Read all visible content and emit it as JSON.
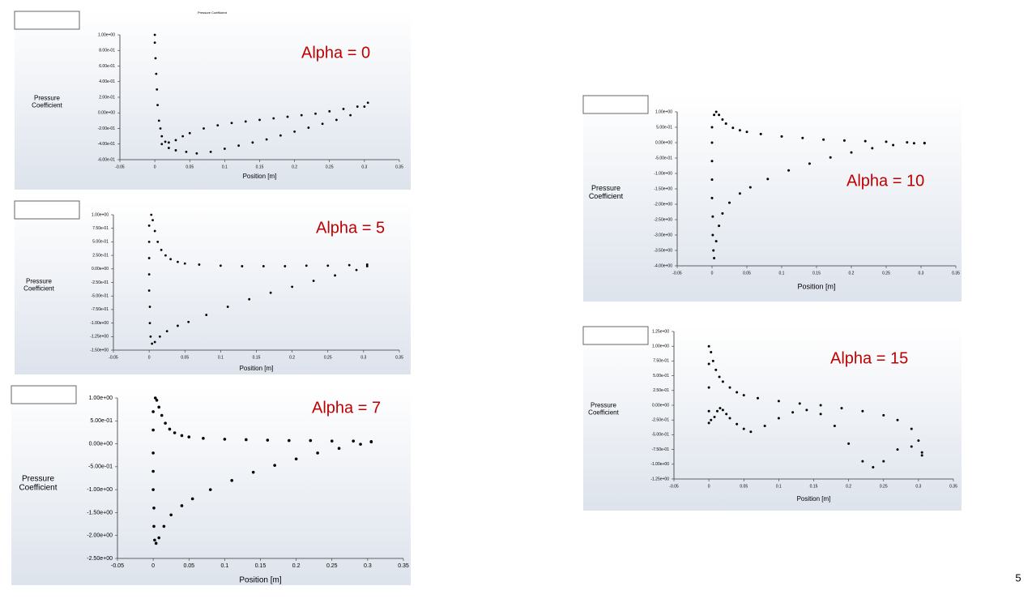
{
  "chart_data": [
    {
      "type": "scatter",
      "title": "Pressure Coefficient",
      "annotation": "Alpha = 0",
      "xlabel": "Position [m]",
      "ylabel": "Pressure\nCoefficient",
      "color": "#000000",
      "xlim": [
        -0.05,
        0.35
      ],
      "xticks": [
        -0.05,
        0,
        0.05,
        0.1,
        0.15,
        0.2,
        0.25,
        0.3,
        0.35
      ],
      "ylim": [
        -0.6,
        1
      ],
      "yticks": [
        {
          "value": -0.6,
          "label": "-6.00e-01"
        },
        {
          "value": -0.4,
          "label": "-4.00e-01"
        },
        {
          "value": -0.2,
          "label": "-2.00e-01"
        },
        {
          "value": 0,
          "label": "0.00e+00"
        },
        {
          "value": 0.2,
          "label": "2.00e-01"
        },
        {
          "value": 0.4,
          "label": "4.00e-01"
        },
        {
          "value": 0.6,
          "label": "6.00e-01"
        },
        {
          "value": 0.8,
          "label": "8.00e-01"
        },
        {
          "value": 1,
          "label": "1.00e+00"
        }
      ],
      "x": [
        0,
        0,
        0.001,
        0.002,
        0.003,
        0.004,
        0.006,
        0.008,
        0.01,
        0.015,
        0.02,
        0.03,
        0.04,
        0.05,
        0.07,
        0.09,
        0.11,
        0.13,
        0.15,
        0.17,
        0.19,
        0.21,
        0.23,
        0.25,
        0.27,
        0.29,
        0.305,
        0.01,
        0.02,
        0.03,
        0.045,
        0.06,
        0.08,
        0.1,
        0.12,
        0.14,
        0.16,
        0.18,
        0.2,
        0.22,
        0.24,
        0.26,
        0.28,
        0.3
      ],
      "values": [
        1,
        0.9,
        0.7,
        0.5,
        0.3,
        0.1,
        -0.1,
        -0.2,
        -0.3,
        -0.37,
        -0.38,
        -0.35,
        -0.3,
        -0.26,
        -0.2,
        -0.16,
        -0.13,
        -0.11,
        -0.09,
        -0.07,
        -0.05,
        -0.03,
        -0.01,
        0.02,
        0.05,
        0.08,
        0.13,
        -0.4,
        -0.45,
        -0.48,
        -0.5,
        -0.52,
        -0.5,
        -0.46,
        -0.42,
        -0.38,
        -0.34,
        -0.29,
        -0.24,
        -0.19,
        -0.14,
        -0.09,
        -0.03,
        0.08
      ]
    },
    {
      "type": "scatter",
      "annotation": "Alpha = 5",
      "xlabel": "Position [m]",
      "ylabel": "Pressure\nCoefficient",
      "color": "#000000",
      "xlim": [
        -0.05,
        0.35
      ],
      "xticks": [
        -0.05,
        0,
        0.05,
        0.1,
        0.15,
        0.2,
        0.25,
        0.3,
        0.35
      ],
      "ylim": [
        -1.5,
        1
      ],
      "yticks": [
        {
          "value": -1.5,
          "label": "-1.50e+00"
        },
        {
          "value": -1.25,
          "label": "-1.25e+00"
        },
        {
          "value": -1,
          "label": "-1.00e+00"
        },
        {
          "value": -0.75,
          "label": "-7.50e-01"
        },
        {
          "value": -0.5,
          "label": "-5.00e-01"
        },
        {
          "value": -0.25,
          "label": "-2.50e-01"
        },
        {
          "value": 0,
          "label": "0.00e+00"
        },
        {
          "value": 0.25,
          "label": "2.50e-01"
        },
        {
          "value": 0.5,
          "label": "5.00e-01"
        },
        {
          "value": 0.75,
          "label": "7.50e-01"
        },
        {
          "value": 1,
          "label": "1.00e+00"
        }
      ],
      "x": [
        0.003,
        0.005,
        0.008,
        0.012,
        0.017,
        0.023,
        0.03,
        0.04,
        0.05,
        0.07,
        0.1,
        0.13,
        0.16,
        0.19,
        0.22,
        0.25,
        0.28,
        0.305,
        0,
        0,
        0,
        0,
        0,
        0.001,
        0.001,
        0.002,
        0.004,
        0.008,
        0.015,
        0.025,
        0.04,
        0.055,
        0.08,
        0.11,
        0.14,
        0.17,
        0.2,
        0.23,
        0.26,
        0.29,
        0.305
      ],
      "values": [
        1,
        0.9,
        0.7,
        0.5,
        0.35,
        0.25,
        0.18,
        0.13,
        0.1,
        0.08,
        0.06,
        0.05,
        0.05,
        0.05,
        0.06,
        0.06,
        0.07,
        0.08,
        0.8,
        0.5,
        0.2,
        -0.1,
        -0.4,
        -0.7,
        -1,
        -1.25,
        -1.38,
        -1.35,
        -1.25,
        -1.15,
        -1.05,
        -0.98,
        -0.85,
        -0.7,
        -0.56,
        -0.44,
        -0.33,
        -0.22,
        -0.12,
        -0.02,
        0.05
      ]
    },
    {
      "type": "scatter",
      "annotation": "Alpha = 7",
      "xlabel": "Position [m]",
      "ylabel": "Pressure\nCoefficient",
      "color": "#000000",
      "xlim": [
        -0.05,
        0.35
      ],
      "xticks": [
        -0.05,
        0,
        0.05,
        0.1,
        0.15,
        0.2,
        0.25,
        0.3,
        0.35
      ],
      "ylim": [
        -2.5,
        1
      ],
      "yticks": [
        {
          "value": -2.5,
          "label": "-2.50e+00"
        },
        {
          "value": -2,
          "label": "-2.00e+00"
        },
        {
          "value": -1.5,
          "label": "-1.50e+00"
        },
        {
          "value": -1,
          "label": "-1.00e+00"
        },
        {
          "value": -0.5,
          "label": "-5.00e-01"
        },
        {
          "value": 0,
          "label": "0.00e+00"
        },
        {
          "value": 0.5,
          "label": "5.00e-01"
        },
        {
          "value": 1,
          "label": "1.00e+00"
        }
      ],
      "x": [
        0.003,
        0.005,
        0.008,
        0.012,
        0.017,
        0.023,
        0.03,
        0.04,
        0.05,
        0.07,
        0.1,
        0.13,
        0.16,
        0.19,
        0.22,
        0.25,
        0.28,
        0.305,
        0,
        0,
        0,
        0,
        0,
        0.001,
        0.001,
        0.002,
        0.004,
        0.008,
        0.015,
        0.025,
        0.04,
        0.055,
        0.08,
        0.11,
        0.14,
        0.17,
        0.2,
        0.23,
        0.26,
        0.29,
        0.305
      ],
      "values": [
        1,
        0.95,
        0.8,
        0.62,
        0.45,
        0.32,
        0.24,
        0.18,
        0.15,
        0.12,
        0.1,
        0.09,
        0.08,
        0.07,
        0.07,
        0.06,
        0.06,
        0.05,
        0.7,
        0.3,
        -0.2,
        -0.6,
        -1,
        -1.4,
        -1.8,
        -2.1,
        -2.17,
        -2.05,
        -1.8,
        -1.55,
        -1.35,
        -1.2,
        -1,
        -0.8,
        -0.62,
        -0.47,
        -0.33,
        -0.2,
        -0.1,
        -0.01,
        0.04
      ]
    },
    {
      "type": "scatter",
      "annotation": "Alpha = 10",
      "xlabel": "Position [m]",
      "ylabel": "Pressure\nCoefficient",
      "color": "#000000",
      "xlim": [
        -0.05,
        0.35
      ],
      "xticks": [
        -0.05,
        0,
        0.05,
        0.1,
        0.15,
        0.2,
        0.25,
        0.3,
        0.35
      ],
      "ylim": [
        -4,
        1
      ],
      "yticks": [
        {
          "value": -4,
          "label": "-4.00e+00"
        },
        {
          "value": -3.5,
          "label": "-3.50e+00"
        },
        {
          "value": -3,
          "label": "-3.00e+00"
        },
        {
          "value": -2.5,
          "label": "-2.50e+00"
        },
        {
          "value": -2,
          "label": "-2.00e+00"
        },
        {
          "value": -1.5,
          "label": "-1.50e+00"
        },
        {
          "value": -1,
          "label": "-1.00e+00"
        },
        {
          "value": -0.5,
          "label": "-5.00e-01"
        },
        {
          "value": 0,
          "label": "0.00e+00"
        },
        {
          "value": 0.5,
          "label": "5.00e-01"
        },
        {
          "value": 1,
          "label": "1.00e+00"
        }
      ],
      "x": [
        0.003,
        0.006,
        0.01,
        0.015,
        0.02,
        0.03,
        0.04,
        0.05,
        0.07,
        0.1,
        0.13,
        0.16,
        0.19,
        0.22,
        0.25,
        0.28,
        0.305,
        0,
        0,
        0,
        0,
        0,
        0.001,
        0.001,
        0.002,
        0.003,
        0.006,
        0.01,
        0.015,
        0.025,
        0.04,
        0.055,
        0.08,
        0.11,
        0.14,
        0.17,
        0.2,
        0.23,
        0.26,
        0.29,
        0.305
      ],
      "values": [
        0.9,
        1,
        0.9,
        0.75,
        0.62,
        0.48,
        0.4,
        0.35,
        0.28,
        0.2,
        0.15,
        0.1,
        0.07,
        0.05,
        0.03,
        0.01,
        -0.02,
        0.5,
        0,
        -0.6,
        -1.2,
        -1.8,
        -2.4,
        -3,
        -3.5,
        -3.75,
        -3.2,
        -2.7,
        -2.3,
        -1.95,
        -1.65,
        -1.45,
        -1.18,
        -0.9,
        -0.68,
        -0.48,
        -0.32,
        -0.18,
        -0.08,
        -0.02,
        -0.01
      ]
    },
    {
      "type": "scatter",
      "annotation": "Alpha = 15",
      "xlabel": "Position [m]",
      "ylabel": "Pressure\nCoefficient",
      "color": "#000000",
      "xlim": [
        -0.05,
        0.35
      ],
      "xticks": [
        -0.05,
        0,
        0.05,
        0.1,
        0.15,
        0.2,
        0.25,
        0.3,
        0.35
      ],
      "ylim": [
        -1.25,
        1.25
      ],
      "yticks": [
        {
          "value": -1.25,
          "label": "-1.25e+00"
        },
        {
          "value": -1,
          "label": "-1.00e+00"
        },
        {
          "value": -0.75,
          "label": "-7.50e-01"
        },
        {
          "value": -0.5,
          "label": "-5.00e-01"
        },
        {
          "value": -0.25,
          "label": "-2.50e-01"
        },
        {
          "value": 0,
          "label": "0.00e+00"
        },
        {
          "value": 0.25,
          "label": "2.50e-01"
        },
        {
          "value": 0.5,
          "label": "5.00e-01"
        },
        {
          "value": 0.75,
          "label": "7.50e-01"
        },
        {
          "value": 1,
          "label": "1.00e+00"
        },
        {
          "value": 1.25,
          "label": "1.25e+00"
        }
      ],
      "x": [
        0,
        0.003,
        0.006,
        0.01,
        0.015,
        0.02,
        0.03,
        0.04,
        0.05,
        0.07,
        0.1,
        0.13,
        0.16,
        0.19,
        0.22,
        0.25,
        0.27,
        0.29,
        0.3,
        0.305,
        0,
        0,
        0,
        0,
        0.003,
        0.008,
        0.012,
        0.016,
        0.02,
        0.025,
        0.03,
        0.04,
        0.05,
        0.06,
        0.08,
        0.1,
        0.12,
        0.14,
        0.16,
        0.18,
        0.2,
        0.22,
        0.235,
        0.25,
        0.27,
        0.29,
        0.305
      ],
      "values": [
        1,
        0.9,
        0.75,
        0.6,
        0.48,
        0.4,
        0.3,
        0.22,
        0.17,
        0.12,
        0.07,
        0.03,
        0,
        -0.05,
        -0.1,
        -0.17,
        -0.25,
        -0.4,
        -0.6,
        -0.8,
        0.7,
        0.3,
        -0.1,
        -0.3,
        -0.25,
        -0.2,
        -0.1,
        -0.05,
        -0.08,
        -0.15,
        -0.22,
        -0.32,
        -0.4,
        -0.45,
        -0.35,
        -0.22,
        -0.12,
        -0.08,
        -0.15,
        -0.35,
        -0.65,
        -0.95,
        -1.05,
        -0.95,
        -0.75,
        -0.7,
        -0.85
      ]
    }
  ],
  "slide": {
    "page_number": "5"
  }
}
